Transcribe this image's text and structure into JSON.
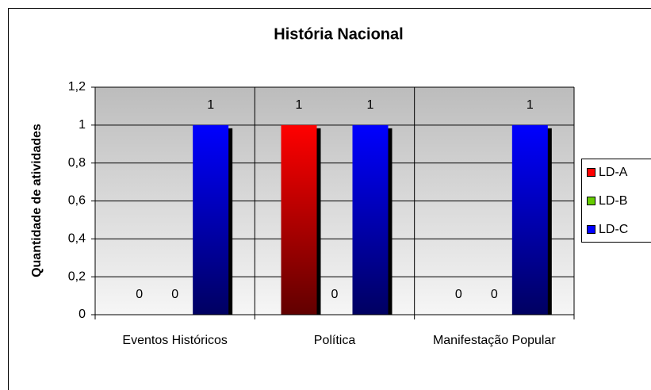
{
  "chart_data": {
    "type": "bar",
    "title": "História Nacional",
    "y_label": "Quantidade de atividades",
    "categories": [
      "Eventos Históricos",
      "Política",
      "Manifestação Popular"
    ],
    "series": [
      {
        "name": "LD-A",
        "color": "#ff0000",
        "values": [
          0,
          1,
          0
        ]
      },
      {
        "name": "LD-B",
        "color": "#66cc00",
        "values": [
          0,
          0,
          0
        ]
      },
      {
        "name": "LD-C",
        "color": "#0000ff",
        "values": [
          1,
          1,
          1
        ]
      }
    ],
    "ylim": [
      0,
      1.2
    ],
    "yticks": [
      0,
      {
        "value": 0.2,
        "label": "0,2"
      },
      {
        "value": 0.4,
        "label": "0,4"
      },
      {
        "value": 0.6,
        "label": "0,6"
      },
      {
        "value": 0.8,
        "label": "0,8"
      },
      1,
      {
        "value": 1.2,
        "label": "1,2"
      }
    ],
    "grid": true,
    "legend": "right"
  }
}
